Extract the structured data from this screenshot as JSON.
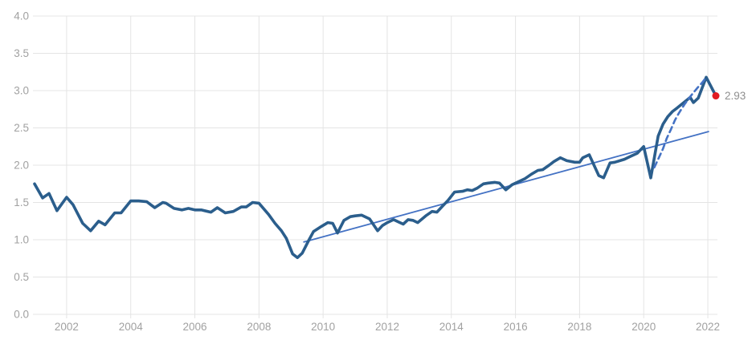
{
  "chart_data": {
    "type": "line",
    "title": "",
    "xlabel": "",
    "ylabel": "",
    "legend": "none",
    "x_axis": {
      "min": 2000.95,
      "max": 2022.3,
      "grid": true,
      "ticks": [
        2002,
        2004,
        2006,
        2008,
        2010,
        2012,
        2014,
        2016,
        2018,
        2020,
        2022
      ],
      "tick_labels": [
        "2002",
        "2004",
        "2006",
        "2008",
        "2010",
        "2012",
        "2014",
        "2016",
        "2018",
        "2020",
        "2022"
      ]
    },
    "y_axis": {
      "min": 0,
      "max": 4,
      "grid": true,
      "ticks": [
        0,
        0.5,
        1,
        1.5,
        2,
        2.5,
        3,
        3.5,
        4
      ],
      "tick_labels": [
        "0.0",
        "0.5",
        "1.0",
        "1.5",
        "2.0",
        "2.5",
        "3.0",
        "3.5",
        "4.0"
      ]
    },
    "series": [
      {
        "name": "trend-line",
        "style": "solid",
        "color": "#4472c4",
        "width": 1.8,
        "points": [
          [
            2009.4,
            0.97
          ],
          [
            2022.02,
            2.45
          ]
        ]
      },
      {
        "name": "main-series",
        "style": "solid",
        "color": "#2b5e8c",
        "width": 3.6,
        "points": [
          [
            2001.0,
            1.75
          ],
          [
            2001.25,
            1.56
          ],
          [
            2001.45,
            1.62
          ],
          [
            2001.7,
            1.39
          ],
          [
            2002.0,
            1.57
          ],
          [
            2002.2,
            1.47
          ],
          [
            2002.5,
            1.22
          ],
          [
            2002.75,
            1.12
          ],
          [
            2003.0,
            1.25
          ],
          [
            2003.2,
            1.2
          ],
          [
            2003.5,
            1.36
          ],
          [
            2003.7,
            1.36
          ],
          [
            2004.0,
            1.52
          ],
          [
            2004.25,
            1.52
          ],
          [
            2004.5,
            1.51
          ],
          [
            2004.75,
            1.43
          ],
          [
            2005.0,
            1.5
          ],
          [
            2005.1,
            1.49
          ],
          [
            2005.35,
            1.42
          ],
          [
            2005.6,
            1.4
          ],
          [
            2005.8,
            1.42
          ],
          [
            2006.0,
            1.4
          ],
          [
            2006.2,
            1.4
          ],
          [
            2006.5,
            1.37
          ],
          [
            2006.7,
            1.43
          ],
          [
            2006.95,
            1.36
          ],
          [
            2007.2,
            1.38
          ],
          [
            2007.45,
            1.44
          ],
          [
            2007.6,
            1.44
          ],
          [
            2007.8,
            1.5
          ],
          [
            2008.0,
            1.49
          ],
          [
            2008.3,
            1.34
          ],
          [
            2008.5,
            1.22
          ],
          [
            2008.7,
            1.12
          ],
          [
            2008.85,
            1.02
          ],
          [
            2009.05,
            0.81
          ],
          [
            2009.2,
            0.76
          ],
          [
            2009.35,
            0.82
          ],
          [
            2009.55,
            0.99
          ],
          [
            2009.7,
            1.11
          ],
          [
            2009.95,
            1.18
          ],
          [
            2010.15,
            1.23
          ],
          [
            2010.3,
            1.22
          ],
          [
            2010.45,
            1.09
          ],
          [
            2010.65,
            1.26
          ],
          [
            2010.85,
            1.31
          ],
          [
            2011.0,
            1.32
          ],
          [
            2011.2,
            1.33
          ],
          [
            2011.45,
            1.28
          ],
          [
            2011.7,
            1.12
          ],
          [
            2011.85,
            1.19
          ],
          [
            2012.0,
            1.23
          ],
          [
            2012.2,
            1.27
          ],
          [
            2012.35,
            1.24
          ],
          [
            2012.5,
            1.21
          ],
          [
            2012.65,
            1.27
          ],
          [
            2012.8,
            1.26
          ],
          [
            2012.95,
            1.23
          ],
          [
            2013.2,
            1.32
          ],
          [
            2013.4,
            1.38
          ],
          [
            2013.55,
            1.37
          ],
          [
            2013.7,
            1.44
          ],
          [
            2013.9,
            1.53
          ],
          [
            2014.1,
            1.64
          ],
          [
            2014.35,
            1.65
          ],
          [
            2014.5,
            1.67
          ],
          [
            2014.65,
            1.66
          ],
          [
            2014.8,
            1.69
          ],
          [
            2015.0,
            1.75
          ],
          [
            2015.15,
            1.76
          ],
          [
            2015.35,
            1.77
          ],
          [
            2015.5,
            1.76
          ],
          [
            2015.7,
            1.67
          ],
          [
            2015.9,
            1.74
          ],
          [
            2016.1,
            1.78
          ],
          [
            2016.3,
            1.82
          ],
          [
            2016.5,
            1.88
          ],
          [
            2016.7,
            1.93
          ],
          [
            2016.85,
            1.94
          ],
          [
            2017.05,
            2.0
          ],
          [
            2017.2,
            2.05
          ],
          [
            2017.4,
            2.1
          ],
          [
            2017.6,
            2.06
          ],
          [
            2017.85,
            2.04
          ],
          [
            2018.0,
            2.04
          ],
          [
            2018.1,
            2.1
          ],
          [
            2018.3,
            2.14
          ],
          [
            2018.6,
            1.86
          ],
          [
            2018.75,
            1.83
          ],
          [
            2018.95,
            2.03
          ],
          [
            2019.1,
            2.04
          ],
          [
            2019.4,
            2.08
          ],
          [
            2019.6,
            2.12
          ],
          [
            2019.8,
            2.16
          ],
          [
            2020.0,
            2.25
          ],
          [
            2020.22,
            1.83
          ],
          [
            2020.45,
            2.39
          ],
          [
            2020.6,
            2.55
          ],
          [
            2020.75,
            2.65
          ],
          [
            2020.9,
            2.72
          ],
          [
            2021.05,
            2.77
          ],
          [
            2021.25,
            2.84
          ],
          [
            2021.45,
            2.91
          ],
          [
            2021.55,
            2.84
          ],
          [
            2021.7,
            2.9
          ],
          [
            2021.95,
            3.18
          ],
          [
            2022.25,
            2.93
          ]
        ]
      },
      {
        "name": "projection-dashed",
        "style": "dashed",
        "color": "#4472c4",
        "width": 2.6,
        "points": [
          [
            2020.33,
            1.97
          ],
          [
            2020.45,
            2.08
          ],
          [
            2020.6,
            2.22
          ],
          [
            2020.72,
            2.36
          ],
          [
            2020.85,
            2.48
          ],
          [
            2020.97,
            2.6
          ],
          [
            2021.1,
            2.7
          ],
          [
            2021.28,
            2.82
          ],
          [
            2021.47,
            2.93
          ],
          [
            2021.68,
            3.04
          ],
          [
            2021.83,
            3.11
          ],
          [
            2021.95,
            3.18
          ]
        ]
      }
    ],
    "annotation": {
      "x": 2022.25,
      "y": 2.93,
      "label": "2.93",
      "dot_color": "#e11b22",
      "label_color": "#8f8f8f"
    },
    "colors": {
      "background": "#ffffff",
      "grid": "#e4e4e4",
      "tick_label": "#a1a1a1"
    }
  }
}
